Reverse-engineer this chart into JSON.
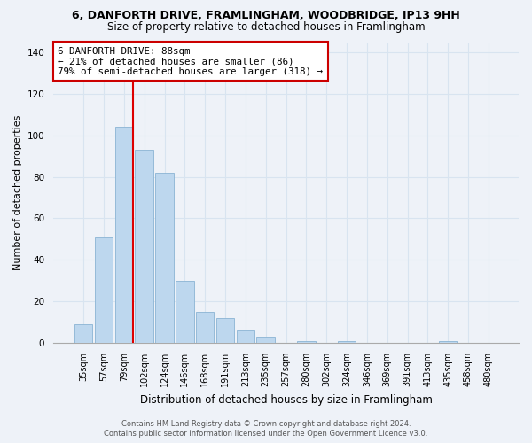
{
  "title_line1": "6, DANFORTH DRIVE, FRAMLINGHAM, WOODBRIDGE, IP13 9HH",
  "title_line2": "Size of property relative to detached houses in Framlingham",
  "xlabel": "Distribution of detached houses by size in Framlingham",
  "ylabel": "Number of detached properties",
  "bar_labels": [
    "35sqm",
    "57sqm",
    "79sqm",
    "102sqm",
    "124sqm",
    "146sqm",
    "168sqm",
    "191sqm",
    "213sqm",
    "235sqm",
    "257sqm",
    "280sqm",
    "302sqm",
    "324sqm",
    "346sqm",
    "369sqm",
    "391sqm",
    "413sqm",
    "435sqm",
    "458sqm",
    "480sqm"
  ],
  "bar_values": [
    9,
    51,
    104,
    93,
    82,
    30,
    15,
    12,
    6,
    3,
    0,
    1,
    0,
    1,
    0,
    0,
    0,
    0,
    1,
    0,
    0
  ],
  "bar_color": "#bdd7ee",
  "bar_edge_color": "#8ab4d4",
  "property_line_color": "#dd0000",
  "ylim": [
    0,
    145
  ],
  "yticks": [
    0,
    20,
    40,
    60,
    80,
    100,
    120,
    140
  ],
  "annotation_title": "6 DANFORTH DRIVE: 88sqm",
  "annotation_line1": "← 21% of detached houses are smaller (86)",
  "annotation_line2": "79% of semi-detached houses are larger (318) →",
  "annotation_box_color": "#ffffff",
  "annotation_box_edge": "#cc0000",
  "footer_line1": "Contains HM Land Registry data © Crown copyright and database right 2024.",
  "footer_line2": "Contains public sector information licensed under the Open Government Licence v3.0.",
  "bg_color": "#eef2f8",
  "grid_color": "#d8e4f0",
  "title1_fontsize": 9,
  "title2_fontsize": 8.5,
  "ylabel_fontsize": 8,
  "xlabel_fontsize": 8.5,
  "tick_fontsize": 7,
  "ann_fontsize": 7.8,
  "footer_fontsize": 6.0
}
